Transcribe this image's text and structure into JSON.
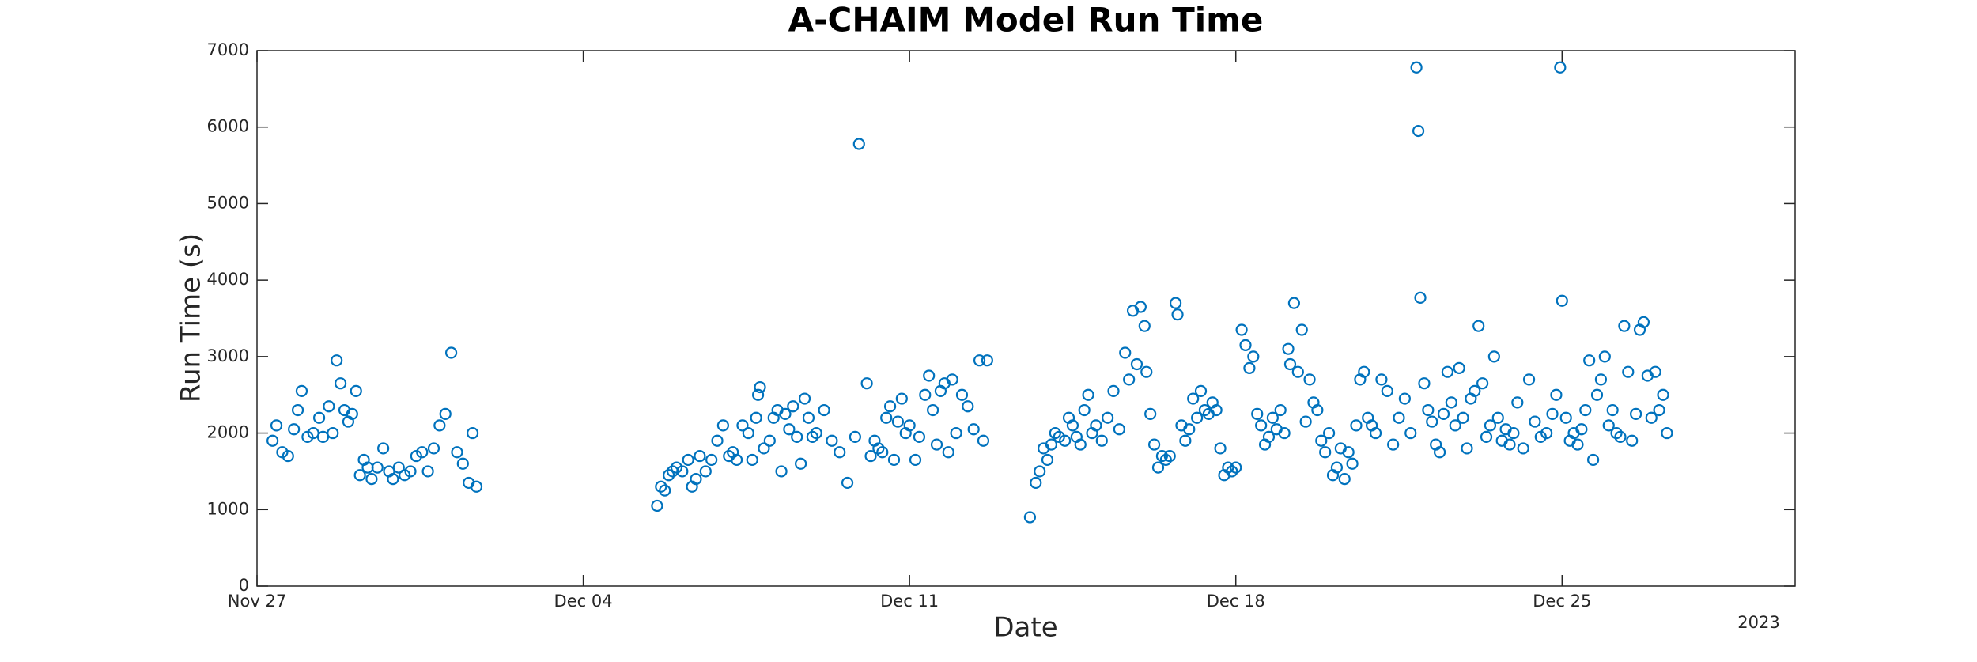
{
  "chart_data": {
    "type": "scatter",
    "title": "A-CHAIM Model Run Time",
    "xlabel": "Date",
    "ylabel": "Run Time (s)",
    "x_year_label": "2023",
    "color": "#0072bd",
    "xlim": [
      "2023-11-27T00:00",
      "2023-12-30T00:00"
    ],
    "xticks": [
      {
        "value": "2023-11-27T00:00",
        "label": "Nov 27"
      },
      {
        "value": "2023-12-04T00:00",
        "label": "Dec 04"
      },
      {
        "value": "2023-12-11T00:00",
        "label": "Dec 11"
      },
      {
        "value": "2023-12-18T00:00",
        "label": "Dec 18"
      },
      {
        "value": "2023-12-25T00:00",
        "label": "Dec 25"
      }
    ],
    "ylim": [
      0,
      7000
    ],
    "yticks": [
      0,
      1000,
      2000,
      3000,
      4000,
      5000,
      6000,
      7000
    ],
    "x": [
      "2023-11-27T08:00",
      "2023-11-27T10:00",
      "2023-11-27T13:00",
      "2023-11-27T16:00",
      "2023-11-27T19:00",
      "2023-11-27T21:00",
      "2023-11-27T23:00",
      "2023-11-28T02:00",
      "2023-11-28T05:00",
      "2023-11-28T08:00",
      "2023-11-28T10:00",
      "2023-11-28T13:00",
      "2023-11-28T15:00",
      "2023-11-28T17:00",
      "2023-11-28T19:00",
      "2023-11-28T21:00",
      "2023-11-28T23:00",
      "2023-11-29T01:00",
      "2023-11-29T03:00",
      "2023-11-29T05:00",
      "2023-11-29T07:00",
      "2023-11-29T09:00",
      "2023-11-29T11:00",
      "2023-11-29T14:00",
      "2023-11-29T17:00",
      "2023-11-29T20:00",
      "2023-11-29T22:00",
      "2023-11-30T01:00",
      "2023-11-30T04:00",
      "2023-11-30T07:00",
      "2023-11-30T10:00",
      "2023-11-30T13:00",
      "2023-11-30T16:00",
      "2023-11-30T19:00",
      "2023-11-30T22:00",
      "2023-12-01T01:00",
      "2023-12-01T04:00",
      "2023-12-01T07:00",
      "2023-12-01T10:00",
      "2023-12-01T13:00",
      "2023-12-01T15:00",
      "2023-12-01T17:00",
      "2023-12-05T14:00",
      "2023-12-05T16:00",
      "2023-12-05T18:00",
      "2023-12-05T20:00",
      "2023-12-05T22:00",
      "2023-12-06T00:00",
      "2023-12-06T03:00",
      "2023-12-06T06:00",
      "2023-12-06T08:00",
      "2023-12-06T10:00",
      "2023-12-06T12:00",
      "2023-12-06T15:00",
      "2023-12-06T18:00",
      "2023-12-06T21:00",
      "2023-12-07T00:00",
      "2023-12-07T03:00",
      "2023-12-07T05:00",
      "2023-12-07T07:00",
      "2023-12-07T10:00",
      "2023-12-07T13:00",
      "2023-12-07T15:00",
      "2023-12-07T17:00",
      "2023-12-07T18:00",
      "2023-12-07T19:00",
      "2023-12-07T21:00",
      "2023-12-08T00:00",
      "2023-12-08T02:00",
      "2023-12-08T04:00",
      "2023-12-08T06:00",
      "2023-12-08T08:00",
      "2023-12-08T10:00",
      "2023-12-08T12:00",
      "2023-12-08T14:00",
      "2023-12-08T16:00",
      "2023-12-08T18:00",
      "2023-12-08T20:00",
      "2023-12-08T22:00",
      "2023-12-09T00:00",
      "2023-12-09T04:00",
      "2023-12-09T08:00",
      "2023-12-09T12:00",
      "2023-12-09T16:00",
      "2023-12-09T20:00",
      "2023-12-09T22:00",
      "2023-12-10T02:00",
      "2023-12-10T04:00",
      "2023-12-10T06:00",
      "2023-12-10T08:00",
      "2023-12-10T10:00",
      "2023-12-10T12:00",
      "2023-12-10T14:00",
      "2023-12-10T16:00",
      "2023-12-10T18:00",
      "2023-12-10T20:00",
      "2023-12-10T22:00",
      "2023-12-11T00:00",
      "2023-12-11T03:00",
      "2023-12-11T05:00",
      "2023-12-11T08:00",
      "2023-12-11T10:00",
      "2023-12-11T12:00",
      "2023-12-11T14:00",
      "2023-12-11T16:00",
      "2023-12-11T18:00",
      "2023-12-11T20:00",
      "2023-12-11T22:00",
      "2023-12-12T00:00",
      "2023-12-12T03:00",
      "2023-12-12T06:00",
      "2023-12-12T09:00",
      "2023-12-12T12:00",
      "2023-12-12T14:00",
      "2023-12-12T16:00",
      "2023-12-13T14:00",
      "2023-12-13T17:00",
      "2023-12-13T19:00",
      "2023-12-13T21:00",
      "2023-12-13T23:00",
      "2023-12-14T01:00",
      "2023-12-14T03:00",
      "2023-12-14T05:00",
      "2023-12-14T08:00",
      "2023-12-14T10:00",
      "2023-12-14T12:00",
      "2023-12-14T14:00",
      "2023-12-14T16:00",
      "2023-12-14T18:00",
      "2023-12-14T20:00",
      "2023-12-14T22:00",
      "2023-12-15T00:00",
      "2023-12-15T03:00",
      "2023-12-15T06:00",
      "2023-12-15T09:00",
      "2023-12-15T12:00",
      "2023-12-15T15:00",
      "2023-12-15T17:00",
      "2023-12-15T19:00",
      "2023-12-15T21:00",
      "2023-12-15T23:00",
      "2023-12-16T01:00",
      "2023-12-16T02:00",
      "2023-12-16T04:00",
      "2023-12-16T06:00",
      "2023-12-16T08:00",
      "2023-12-16T10:00",
      "2023-12-16T12:00",
      "2023-12-16T14:00",
      "2023-12-16T17:00",
      "2023-12-16T18:00",
      "2023-12-16T20:00",
      "2023-12-16T22:00",
      "2023-12-17T00:00",
      "2023-12-17T02:00",
      "2023-12-17T04:00",
      "2023-12-17T06:00",
      "2023-12-17T08:00",
      "2023-12-17T10:00",
      "2023-12-17T12:00",
      "2023-12-17T14:00",
      "2023-12-17T16:00",
      "2023-12-17T18:00",
      "2023-12-17T20:00",
      "2023-12-17T22:00",
      "2023-12-18T00:00",
      "2023-12-18T03:00",
      "2023-12-18T05:00",
      "2023-12-18T07:00",
      "2023-12-18T09:00",
      "2023-12-18T11:00",
      "2023-12-18T13:00",
      "2023-12-18T15:00",
      "2023-12-18T17:00",
      "2023-12-18T19:00",
      "2023-12-18T21:00",
      "2023-12-18T23:00",
      "2023-12-19T01:00",
      "2023-12-19T03:00",
      "2023-12-19T04:00",
      "2023-12-19T06:00",
      "2023-12-19T08:00",
      "2023-12-19T10:00",
      "2023-12-19T12:00",
      "2023-12-19T14:00",
      "2023-12-19T16:00",
      "2023-12-19T18:00",
      "2023-12-19T20:00",
      "2023-12-19T22:00",
      "2023-12-20T00:00",
      "2023-12-20T02:00",
      "2023-12-20T04:00",
      "2023-12-20T06:00",
      "2023-12-20T08:00",
      "2023-12-20T10:00",
      "2023-12-20T12:00",
      "2023-12-20T14:00",
      "2023-12-20T16:00",
      "2023-12-20T18:00",
      "2023-12-20T20:00",
      "2023-12-20T22:00",
      "2023-12-21T00:00",
      "2023-12-21T03:00",
      "2023-12-21T06:00",
      "2023-12-21T09:00",
      "2023-12-21T12:00",
      "2023-12-21T15:00",
      "2023-12-21T18:00",
      "2023-12-21T21:00",
      "2023-12-21T22:00",
      "2023-12-21T23:00",
      "2023-12-22T01:00",
      "2023-12-22T03:00",
      "2023-12-22T05:00",
      "2023-12-22T07:00",
      "2023-12-22T09:00",
      "2023-12-22T11:00",
      "2023-12-22T13:00",
      "2023-12-22T15:00",
      "2023-12-22T17:00",
      "2023-12-22T19:00",
      "2023-12-22T21:00",
      "2023-12-22T23:00",
      "2023-12-23T01:00",
      "2023-12-23T03:00",
      "2023-12-23T05:00",
      "2023-12-23T07:00",
      "2023-12-23T09:00",
      "2023-12-23T11:00",
      "2023-12-23T13:00",
      "2023-12-23T15:00",
      "2023-12-23T17:00",
      "2023-12-23T19:00",
      "2023-12-23T21:00",
      "2023-12-23T23:00",
      "2023-12-24T01:00",
      "2023-12-24T04:00",
      "2023-12-24T07:00",
      "2023-12-24T10:00",
      "2023-12-24T13:00",
      "2023-12-24T16:00",
      "2023-12-24T19:00",
      "2023-12-24T21:00",
      "2023-12-24T23:00",
      "2023-12-25T00:00",
      "2023-12-25T02:00",
      "2023-12-25T04:00",
      "2023-12-25T06:00",
      "2023-12-25T08:00",
      "2023-12-25T10:00",
      "2023-12-25T12:00",
      "2023-12-25T14:00",
      "2023-12-25T16:00",
      "2023-12-25T18:00",
      "2023-12-25T20:00",
      "2023-12-25T22:00",
      "2023-12-26T00:00",
      "2023-12-26T02:00",
      "2023-12-26T04:00",
      "2023-12-26T06:00",
      "2023-12-26T08:00",
      "2023-12-26T10:00",
      "2023-12-26T12:00",
      "2023-12-26T14:00",
      "2023-12-26T16:00",
      "2023-12-26T18:00",
      "2023-12-26T20:00",
      "2023-12-26T22:00",
      "2023-12-27T00:00",
      "2023-12-27T02:00",
      "2023-12-27T04:00",
      "2023-12-27T06:00"
    ],
    "values": [
      1900,
      2100,
      1750,
      1700,
      2050,
      2300,
      2550,
      1950,
      2000,
      2200,
      1950,
      2350,
      2000,
      2950,
      2650,
      2300,
      2150,
      2250,
      2550,
      1450,
      1650,
      1550,
      1400,
      1550,
      1800,
      1500,
      1400,
      1550,
      1450,
      1500,
      1700,
      1750,
      1500,
      1800,
      2100,
      2250,
      3050,
      1750,
      1600,
      1350,
      2000,
      1300,
      1050,
      1300,
      1250,
      1450,
      1500,
      1550,
      1500,
      1650,
      1300,
      1400,
      1700,
      1500,
      1650,
      1900,
      2100,
      1700,
      1750,
      1650,
      2100,
      2000,
      1650,
      2200,
      2500,
      2600,
      1800,
      1900,
      2200,
      2300,
      1500,
      2250,
      2050,
      2350,
      1950,
      1600,
      2450,
      2200,
      1950,
      2000,
      2300,
      1900,
      1750,
      1350,
      1950,
      5780,
      2650,
      1700,
      1900,
      1800,
      1750,
      2200,
      2350,
      1650,
      2150,
      2450,
      2000,
      2100,
      1650,
      1950,
      2500,
      2750,
      2300,
      1850,
      2550,
      2650,
      1750,
      2700,
      2000,
      2500,
      2350,
      2050,
      2950,
      1900,
      2950,
      900,
      1350,
      1500,
      1800,
      1650,
      1850,
      2000,
      1950,
      1900,
      2200,
      2100,
      1950,
      1850,
      2300,
      2500,
      2000,
      2100,
      1900,
      2200,
      2550,
      2050,
      3050,
      2700,
      3600,
      2900,
      3650,
      3400,
      2800,
      2250,
      1850,
      1550,
      1700,
      1650,
      1700,
      3700,
      3550,
      2100,
      1900,
      2050,
      2450,
      2200,
      2550,
      2300,
      2250,
      2400,
      2300,
      1800,
      1450,
      1550,
      1500,
      1550,
      3350,
      3150,
      2850,
      3000,
      2250,
      2100,
      1850,
      1950,
      2200,
      2050,
      2300,
      2000,
      3100,
      2900,
      3700,
      2800,
      3350,
      2150,
      2700,
      2400,
      2300,
      1900,
      1750,
      2000,
      1450,
      1550,
      1800,
      1400,
      1750,
      1600,
      2100,
      2700,
      2800,
      2200,
      2100,
      2000,
      2700,
      2550,
      1850,
      2200,
      2450,
      2000,
      6780,
      5950,
      3770,
      2650,
      2300,
      2150,
      1850,
      1750,
      2250,
      2800,
      2400,
      2100,
      2850,
      2200,
      1800,
      2450,
      2550,
      3400,
      2650,
      1950,
      2100,
      3000,
      2200,
      1900,
      2050,
      1850,
      2000,
      2400,
      1800,
      2700,
      2150,
      1950,
      2000,
      2250,
      2500,
      6780,
      3730,
      2200,
      1900,
      2000,
      1850,
      2050,
      2300,
      2950,
      1650,
      2500,
      2700,
      3000,
      2100,
      2300,
      2000,
      1950,
      3400,
      2800,
      1900,
      2250,
      3350,
      3450,
      2750,
      2200,
      2800,
      2300,
      2500,
      2000
    ]
  }
}
